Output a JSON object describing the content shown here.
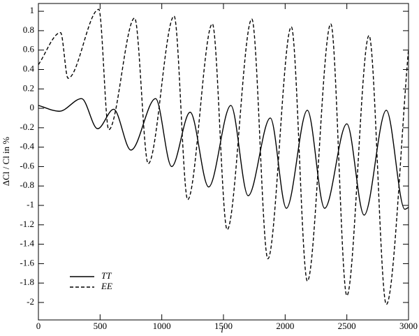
{
  "chart_data": {
    "type": "line",
    "x_label": "l",
    "y_label": "ΔCl / Cl in %",
    "xlim": [
      0,
      3000
    ],
    "xticks": [
      0,
      500,
      1000,
      1500,
      2000,
      2500,
      3000
    ],
    "ylim": [
      -2.18,
      1.08
    ],
    "yticks": [
      1,
      0.8,
      0.6,
      0.4,
      0.2,
      0,
      -0.2,
      -0.4,
      -0.6,
      -0.8,
      -1,
      -1.2,
      -1.4,
      -1.6,
      -1.8,
      -2
    ],
    "legend": "lower left",
    "grid": false,
    "series": [
      {
        "name": "TT",
        "color": "#000000",
        "style": "solid",
        "x": [
          0,
          170,
          350,
          480,
          610,
          750,
          950,
          1080,
          1230,
          1380,
          1560,
          1700,
          1880,
          2010,
          2180,
          2320,
          2500,
          2640,
          2820,
          2970,
          3000
        ],
        "values": [
          0.03,
          -0.03,
          0.1,
          -0.21,
          -0.01,
          -0.43,
          0.1,
          -0.6,
          -0.04,
          -0.81,
          0.03,
          -0.9,
          -0.1,
          -1.03,
          -0.02,
          -1.03,
          -0.16,
          -1.1,
          -0.02,
          -1.04,
          -1.02
        ]
      },
      {
        "name": "EE",
        "color": "#000000",
        "style": "dashed",
        "x": [
          0,
          180,
          240,
          490,
          570,
          780,
          890,
          1100,
          1210,
          1410,
          1530,
          1730,
          1860,
          2050,
          2180,
          2370,
          2500,
          2680,
          2820,
          3000
        ],
        "values": [
          0.45,
          0.78,
          0.31,
          1.02,
          -0.22,
          0.93,
          -0.57,
          0.95,
          -0.94,
          0.87,
          -1.25,
          0.92,
          -1.55,
          0.84,
          -1.78,
          0.87,
          -1.93,
          0.75,
          -2.02,
          0.61
        ]
      }
    ]
  }
}
